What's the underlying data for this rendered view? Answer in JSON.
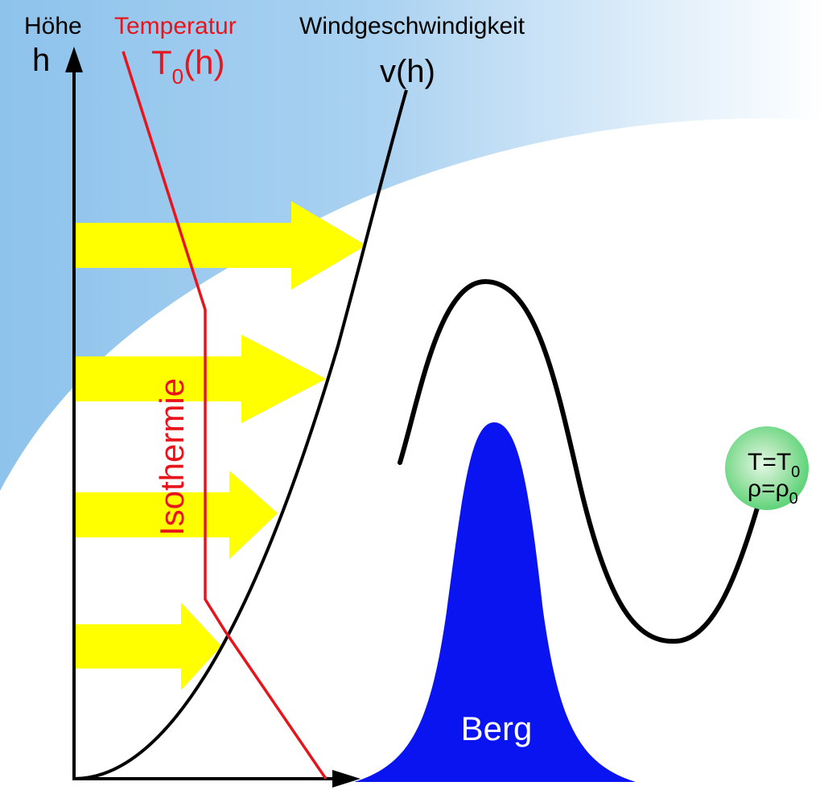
{
  "labels": {
    "height_word": "Höhe",
    "height_symbol": "h",
    "temperature_word": "Temperatur",
    "temperature_symbol_main": "T",
    "temperature_symbol_sub": "0",
    "temperature_symbol_arg": "(h)",
    "wind_word": "Windgeschwindigkeit",
    "wind_symbol": "v(h)",
    "isothermal": "Isothermie",
    "mountain": "Berg",
    "bubble_line1_main": "T=T",
    "bubble_line1_sub": "0",
    "bubble_line2_main": "ρ=ρ",
    "bubble_line2_sub": "0"
  },
  "colors": {
    "sky_blue": "#8ec3ec",
    "temperature_red": "#e8141c",
    "wind_arrow_yellow": "#ffff00",
    "mountain_blue": "#0a14f0",
    "bubble_green": "#5fd47a",
    "line_black": "#000000"
  }
}
